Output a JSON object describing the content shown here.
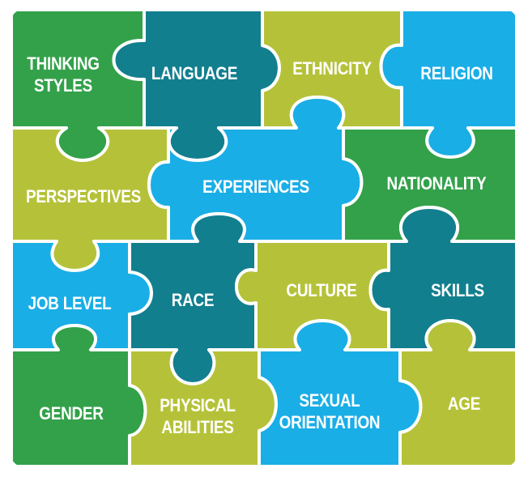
{
  "colors": {
    "dark_green": "#33a14a",
    "teal": "#127f8f",
    "olive": "#b5c239",
    "sky_blue": "#1aaee6",
    "separator": "#ffffff"
  },
  "pieces": [
    {
      "label": "THINKING\nSTYLES",
      "color": "dark_green"
    },
    {
      "label": "LANGUAGE",
      "color": "teal"
    },
    {
      "label": "ETHNICITY",
      "color": "olive"
    },
    {
      "label": "RELIGION",
      "color": "sky_blue"
    },
    {
      "label": "PERSPECTIVES",
      "color": "olive"
    },
    {
      "label": "EXPERIENCES",
      "color": "sky_blue"
    },
    {
      "label": "NATIONALITY",
      "color": "dark_green"
    },
    {
      "label": "JOB LEVEL",
      "color": "sky_blue"
    },
    {
      "label": "RACE",
      "color": "teal"
    },
    {
      "label": "CULTURE",
      "color": "olive"
    },
    {
      "label": "SKILLS",
      "color": "teal"
    },
    {
      "label": "GENDER",
      "color": "dark_green"
    },
    {
      "label": "PHYSICAL\nABILITIES",
      "color": "olive"
    },
    {
      "label": "SEXUAL\nORIENTATION",
      "color": "sky_blue"
    },
    {
      "label": "AGE",
      "color": "olive"
    }
  ]
}
